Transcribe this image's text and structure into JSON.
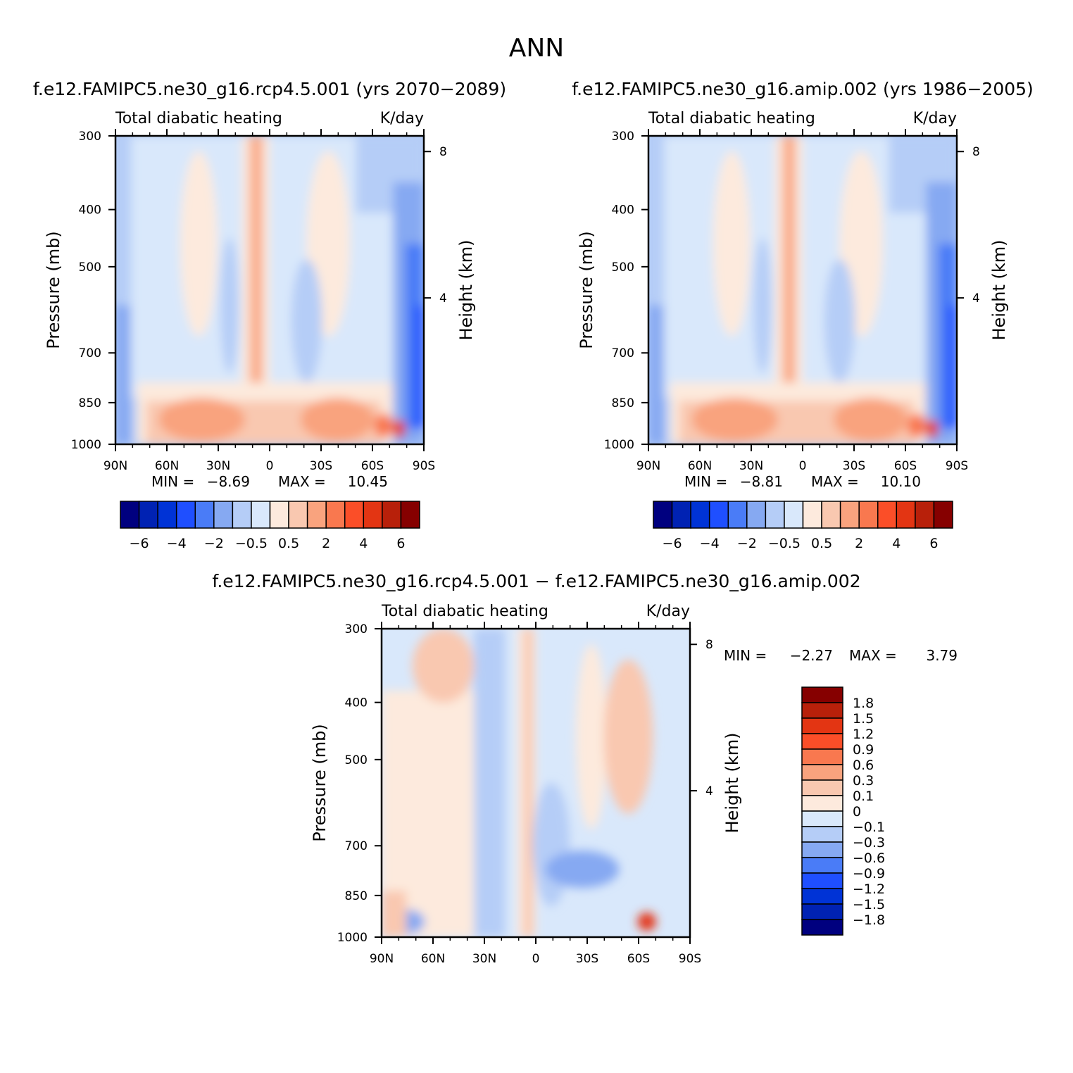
{
  "figure": {
    "title": "ANN"
  },
  "colors": {
    "main_scale": [
      "#00007f",
      "#0022b3",
      "#0033d6",
      "#1f4fff",
      "#4a7cf7",
      "#86a9f2",
      "#b5cdf7",
      "#d9e8fb",
      "#fdeadd",
      "#f9c8b0",
      "#f9a37e",
      "#f9784f",
      "#fb4e28",
      "#e33513",
      "#b8200a",
      "#860000"
    ],
    "diff_scale": [
      "#00007f",
      "#0022b3",
      "#0033d6",
      "#1f4fff",
      "#4a7cf7",
      "#86a9f2",
      "#b5cdf7",
      "#d9e8fb",
      "#fdeadd",
      "#f9c8b0",
      "#f9a37e",
      "#f9784f",
      "#fb4e28",
      "#e33513",
      "#b8200a",
      "#860000"
    ]
  },
  "chart_data": [
    {
      "type": "heatmap",
      "title": "f.e12.FAMIPC5.ne30_g16.rcp4.5.001 (yrs 2070-2089)",
      "left_label": "Total diabatic heating",
      "right_label": "K/day",
      "ylabel": "Pressure (mb)",
      "ylabel_right": "Height (km)",
      "x_ticks": [
        "90N",
        "60N",
        "30N",
        "0",
        "30S",
        "60S",
        "90S"
      ],
      "y_ticks": [
        "300",
        "400",
        "500",
        "700",
        "850",
        "1000"
      ],
      "y_ticks_right": [
        "8",
        "4"
      ],
      "xlim": [
        "90N",
        "90S"
      ],
      "ylim": [
        1000,
        300
      ],
      "min_label": "MIN =",
      "min_value": "-8.69",
      "max_label": "MAX =",
      "max_value": "10.45",
      "colorbar_labels": [
        "-6",
        "-4",
        "-2",
        "-0.5",
        "0.5",
        "2",
        "4",
        "6"
      ],
      "colorbar_levels": [
        -7,
        -6,
        -5,
        -4,
        -3,
        -2,
        -1,
        -0.5,
        0,
        0.5,
        1,
        2,
        3,
        4,
        5,
        6,
        7
      ]
    },
    {
      "type": "heatmap",
      "title": "f.e12.FAMIPC5.ne30_g16.amip.002 (yrs 1986-2005)",
      "left_label": "Total diabatic heating",
      "right_label": "K/day",
      "ylabel": "Pressure (mb)",
      "ylabel_right": "Height (km)",
      "x_ticks": [
        "90N",
        "60N",
        "30N",
        "0",
        "30S",
        "60S",
        "90S"
      ],
      "y_ticks": [
        "300",
        "400",
        "500",
        "700",
        "850",
        "1000"
      ],
      "y_ticks_right": [
        "8",
        "4"
      ],
      "xlim": [
        "90N",
        "90S"
      ],
      "ylim": [
        1000,
        300
      ],
      "min_label": "MIN =",
      "min_value": "-8.81",
      "max_label": "MAX =",
      "max_value": "10.10",
      "colorbar_labels": [
        "-6",
        "-4",
        "-2",
        "-0.5",
        "0.5",
        "2",
        "4",
        "6"
      ],
      "colorbar_levels": [
        -7,
        -6,
        -5,
        -4,
        -3,
        -2,
        -1,
        -0.5,
        0,
        0.5,
        1,
        2,
        3,
        4,
        5,
        6,
        7
      ]
    },
    {
      "type": "heatmap",
      "title": "f.e12.FAMIPC5.ne30_g16.rcp4.5.001 - f.e12.FAMIPC5.ne30_g16.amip.002",
      "left_label": "Total diabatic heating",
      "right_label": "K/day",
      "ylabel": "Pressure (mb)",
      "ylabel_right": "Height (km)",
      "x_ticks": [
        "90N",
        "60N",
        "30N",
        "0",
        "30S",
        "60S",
        "90S"
      ],
      "y_ticks": [
        "300",
        "400",
        "500",
        "700",
        "850",
        "1000"
      ],
      "y_ticks_right": [
        "8",
        "4"
      ],
      "xlim": [
        "90N",
        "90S"
      ],
      "ylim": [
        1000,
        300
      ],
      "min_label": "MIN =",
      "min_value": "-2.27",
      "max_label": "MAX =",
      "max_value": "3.79",
      "colorbar_labels": [
        "1.8",
        "1.5",
        "1.2",
        "0.9",
        "0.6",
        "0.3",
        "0.1",
        "0",
        "-0.1",
        "-0.3",
        "-0.6",
        "-0.9",
        "-1.2",
        "-1.5",
        "-1.8"
      ],
      "colorbar_levels": [
        -2.1,
        -1.8,
        -1.5,
        -1.2,
        -0.9,
        -0.6,
        -0.3,
        -0.1,
        0,
        0.1,
        0.3,
        0.6,
        0.9,
        1.2,
        1.5,
        1.8,
        2.1
      ]
    }
  ]
}
